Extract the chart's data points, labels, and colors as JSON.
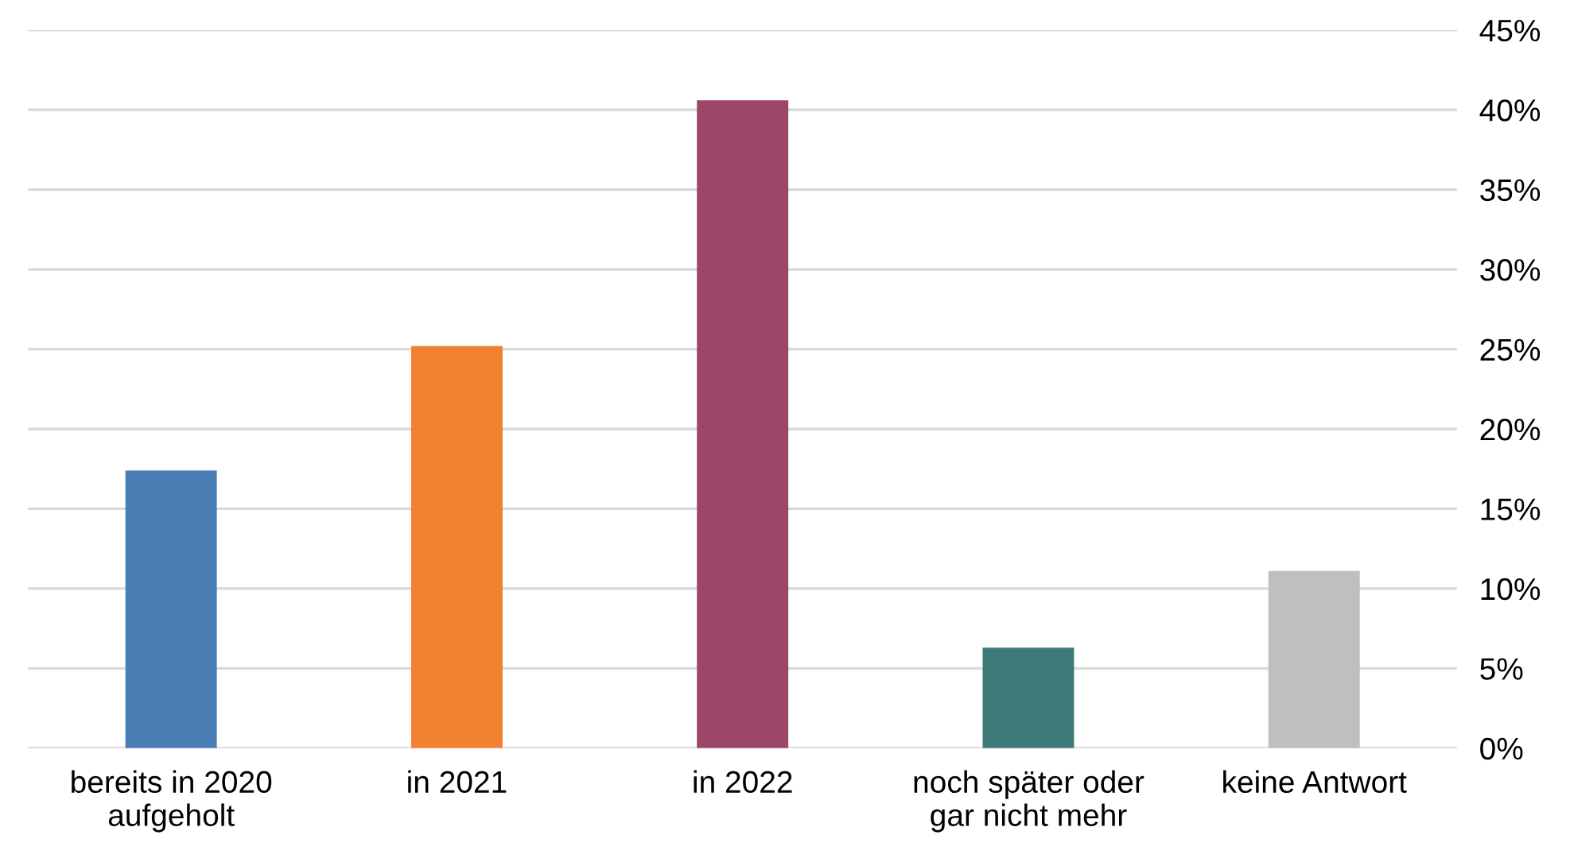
{
  "chart_data": {
    "type": "bar",
    "categories": [
      "bereits in 2020\naufgeholt",
      "in 2021",
      "in 2022",
      "noch später oder\ngar nicht mehr",
      "keine Antwort"
    ],
    "values": [
      17.4,
      25.2,
      40.6,
      6.3,
      11.1
    ],
    "colors": [
      "#4a7fb5",
      "#f08232",
      "#9e4669",
      "#3e7b78",
      "#bfbfbf"
    ],
    "ylim": [
      0,
      45
    ],
    "yticks": [
      {
        "value": 0,
        "label": "0%"
      },
      {
        "value": 5,
        "label": "5%"
      },
      {
        "value": 10,
        "label": "10%"
      },
      {
        "value": 15,
        "label": "15%"
      },
      {
        "value": 20,
        "label": "20%"
      },
      {
        "value": 25,
        "label": "25%"
      },
      {
        "value": 30,
        "label": "30%"
      },
      {
        "value": 35,
        "label": "35%"
      },
      {
        "value": 40,
        "label": "40%"
      },
      {
        "value": 45,
        "label": "45%"
      }
    ],
    "grid": "y"
  }
}
